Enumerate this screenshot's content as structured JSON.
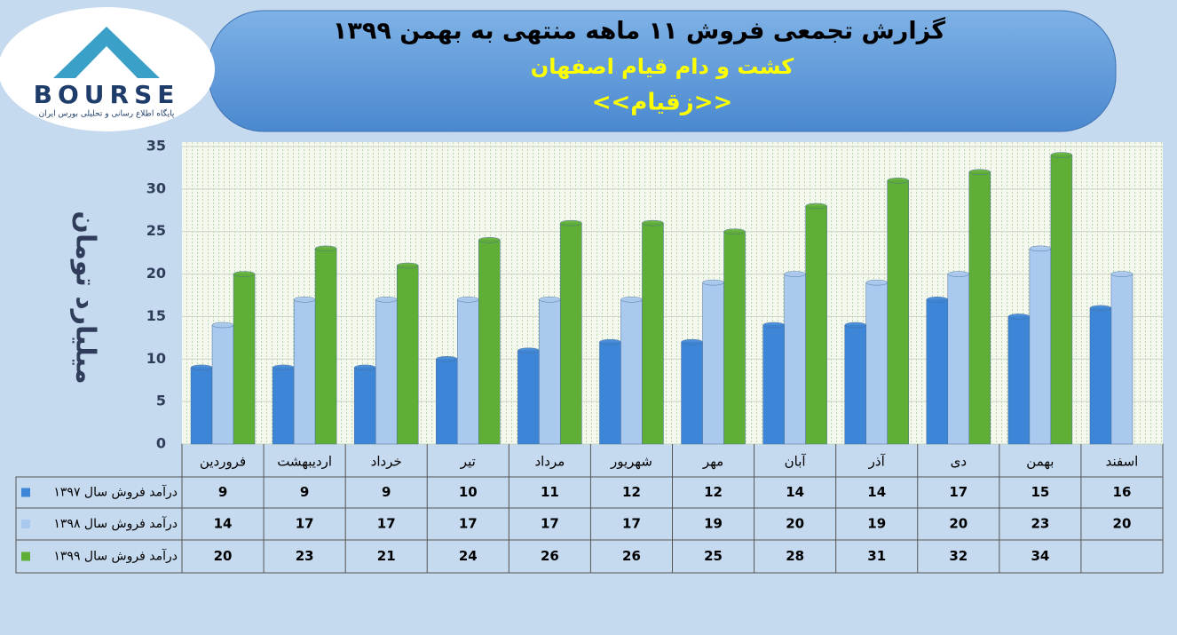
{
  "logo": {
    "text": "BOURSE",
    "tagline": "پایگاه اطلاع رسانی و تحلیلی بورس ایران"
  },
  "chart_data": {
    "type": "bar",
    "title": "گزارش تجمعی فروش ۱۱ ماهه منتهی به بهمن ۱۳۹۹",
    "subtitle": "کشت و دام قیام اصفهان",
    "symbol": "<<زقیام>>",
    "y_label": "میلیارد تومان",
    "categories": [
      "فروردین",
      "اردیبهشت",
      "خرداد",
      "تیر",
      "مرداد",
      "شهریور",
      "مهر",
      "آبان",
      "آذر",
      "دی",
      "بهمن",
      "اسفند"
    ],
    "series": [
      {
        "name": "درآمد فروش سال ۱۳۹۷",
        "color": "#3d85d6",
        "values": [
          9,
          9,
          9,
          10,
          11,
          12,
          12,
          14,
          14,
          17,
          15,
          16
        ]
      },
      {
        "name": "درآمد فروش سال ۱۳۹۸",
        "color": "#a9c9ef",
        "values": [
          14,
          17,
          17,
          17,
          17,
          17,
          19,
          20,
          19,
          20,
          23,
          20
        ]
      },
      {
        "name": "درآمد فروش سال ۱۳۹۹",
        "color": "#5fae35",
        "values": [
          20,
          23,
          21,
          24,
          26,
          26,
          25,
          28,
          31,
          32,
          34,
          null
        ]
      }
    ],
    "ylim": [
      0,
      35
    ],
    "yticks": [
      0,
      5,
      10,
      15,
      20,
      25,
      30,
      35
    ],
    "grid": true,
    "data_table": true
  }
}
